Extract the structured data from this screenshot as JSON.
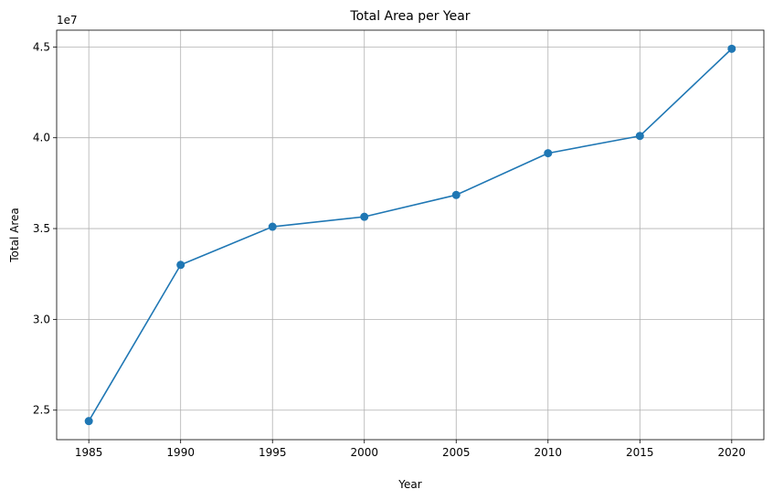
{
  "chart_data": {
    "type": "line",
    "title": "Total Area per Year",
    "xlabel": "Year",
    "ylabel": "Total Area",
    "y_scale_label": "1e7",
    "x": [
      1985,
      1990,
      1995,
      2000,
      2005,
      2010,
      2015,
      2020
    ],
    "series": [
      {
        "values": [
          24400000,
          33000000,
          35100000,
          35650000,
          36850000,
          39150000,
          40100000,
          44900000
        ],
        "color": "#1f77b4",
        "marker": "circle"
      }
    ],
    "x_ticks": [
      1985,
      1990,
      1995,
      2000,
      2005,
      2010,
      2015,
      2020
    ],
    "x_tick_labels": [
      "1985",
      "1990",
      "1995",
      "2000",
      "2005",
      "2010",
      "2015",
      "2020"
    ],
    "y_ticks": [
      25000000,
      30000000,
      35000000,
      40000000,
      45000000
    ],
    "y_tick_labels": [
      "2.5",
      "3.0",
      "3.5",
      "4.0",
      "4.5"
    ],
    "xlim": [
      1983.25,
      2021.75
    ],
    "ylim": [
      23375000,
      45925000
    ],
    "grid": true,
    "grid_color": "#b0b0b0",
    "frame_color": "#000000"
  }
}
